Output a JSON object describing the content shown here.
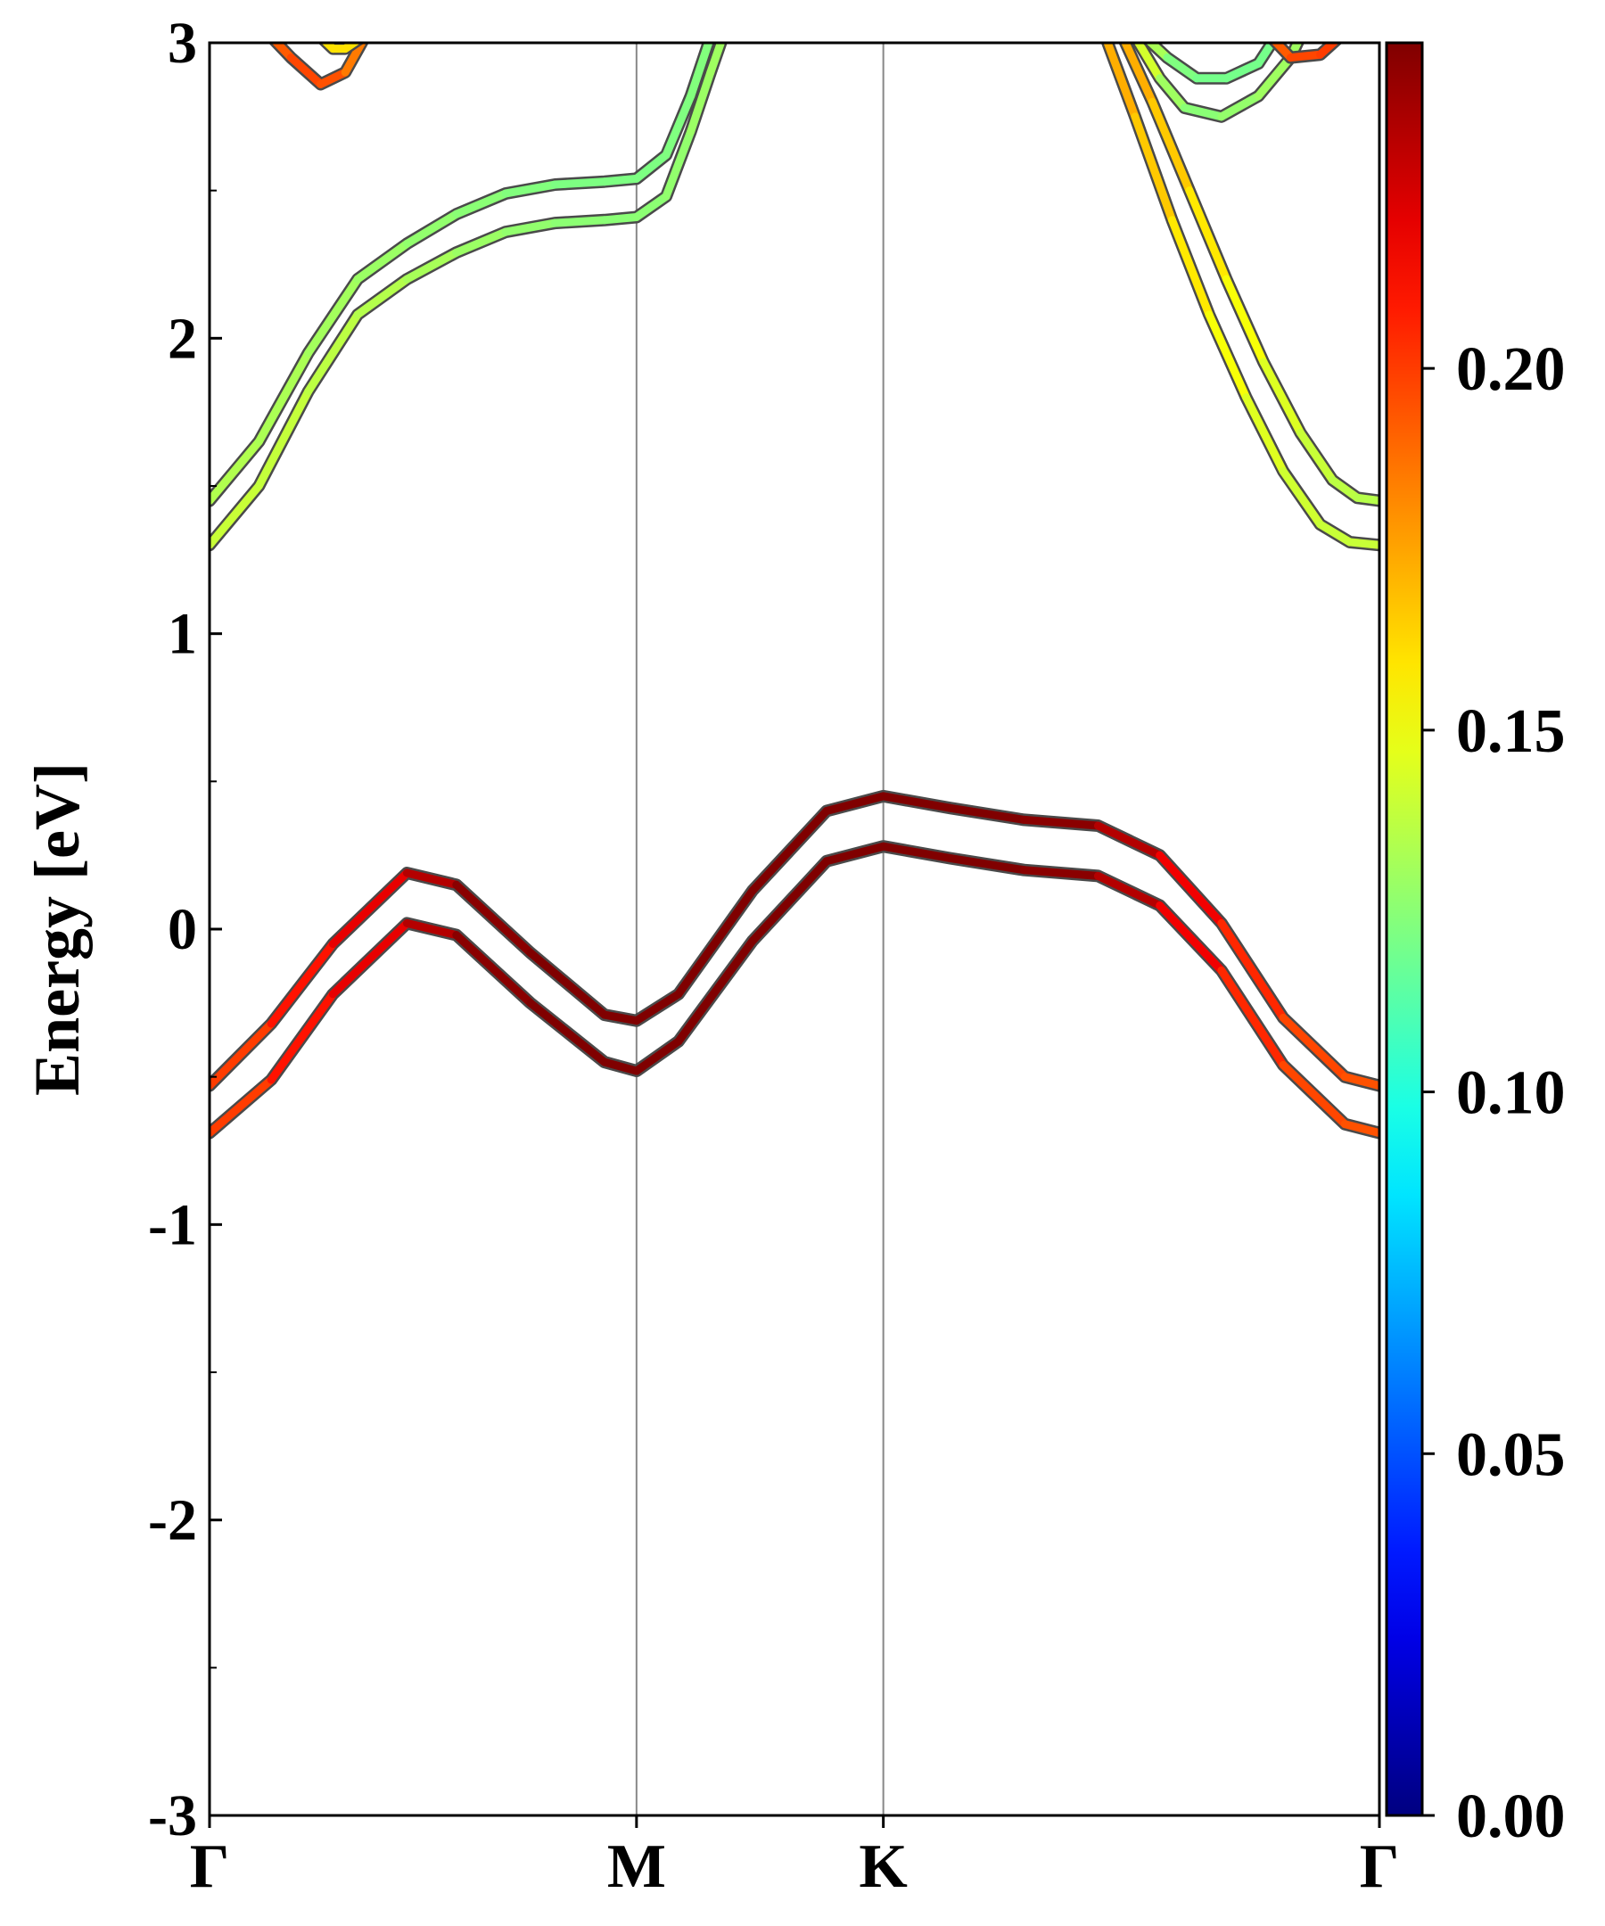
{
  "chart_data": {
    "type": "line",
    "title": "",
    "xlabel": "",
    "ylabel": "Energy [eV]",
    "ylim": [
      -3,
      3
    ],
    "yticks": [
      -3,
      -2,
      -1,
      0,
      1,
      2,
      3
    ],
    "ytick_labels": [
      "-3",
      "-2",
      "-1",
      "0",
      "1",
      "2",
      "3"
    ],
    "x_range": [
      0,
      4.74
    ],
    "high_symmetry_points": [
      {
        "label": "Γ",
        "k": 0
      },
      {
        "label": "M",
        "k": 1.73
      },
      {
        "label": "K",
        "k": 2.73
      },
      {
        "label": "Γ",
        "k": 4.74
      }
    ],
    "grid": false,
    "colorbar": {
      "colormap": "jet",
      "range": [
        0,
        0.245
      ],
      "ticks": [
        0.0,
        0.05,
        0.1,
        0.15,
        0.2
      ],
      "tick_labels": [
        "0.00",
        "0.05",
        "0.10",
        "0.15",
        "0.20"
      ]
    },
    "series": [
      {
        "band": "valence-upper",
        "points": [
          [
            0.0,
            -0.53,
            0.195
          ],
          [
            0.25,
            -0.32,
            0.205
          ],
          [
            0.5,
            -0.05,
            0.215
          ],
          [
            0.8,
            0.19,
            0.225
          ],
          [
            1.0,
            0.15,
            0.24
          ],
          [
            1.3,
            -0.08,
            0.245
          ],
          [
            1.6,
            -0.29,
            0.245
          ],
          [
            1.73,
            -0.31,
            0.245
          ],
          [
            1.9,
            -0.22,
            0.245
          ],
          [
            2.2,
            0.13,
            0.245
          ],
          [
            2.5,
            0.4,
            0.245
          ],
          [
            2.73,
            0.45,
            0.245
          ],
          [
            3.0,
            0.41,
            0.245
          ],
          [
            3.3,
            0.37,
            0.245
          ],
          [
            3.6,
            0.35,
            0.24
          ],
          [
            3.85,
            0.25,
            0.225
          ],
          [
            4.1,
            0.02,
            0.21
          ],
          [
            4.35,
            -0.3,
            0.2
          ],
          [
            4.6,
            -0.5,
            0.195
          ],
          [
            4.74,
            -0.53,
            0.195
          ]
        ]
      },
      {
        "band": "valence-lower",
        "points": [
          [
            0.0,
            -0.69,
            0.195
          ],
          [
            0.25,
            -0.51,
            0.205
          ],
          [
            0.5,
            -0.22,
            0.215
          ],
          [
            0.8,
            0.02,
            0.225
          ],
          [
            1.0,
            -0.02,
            0.24
          ],
          [
            1.3,
            -0.25,
            0.245
          ],
          [
            1.6,
            -0.45,
            0.245
          ],
          [
            1.73,
            -0.48,
            0.245
          ],
          [
            1.9,
            -0.38,
            0.245
          ],
          [
            2.2,
            -0.04,
            0.245
          ],
          [
            2.5,
            0.23,
            0.245
          ],
          [
            2.73,
            0.28,
            0.245
          ],
          [
            3.0,
            0.24,
            0.245
          ],
          [
            3.3,
            0.2,
            0.245
          ],
          [
            3.6,
            0.18,
            0.24
          ],
          [
            3.85,
            0.08,
            0.225
          ],
          [
            4.1,
            -0.14,
            0.21
          ],
          [
            4.35,
            -0.46,
            0.2
          ],
          [
            4.6,
            -0.66,
            0.195
          ],
          [
            4.74,
            -0.69,
            0.195
          ]
        ]
      },
      {
        "band": "conduction-lower",
        "points": [
          [
            0.0,
            1.3,
            0.14
          ],
          [
            0.2,
            1.5,
            0.14
          ],
          [
            0.4,
            1.82,
            0.138
          ],
          [
            0.6,
            2.08,
            0.136
          ],
          [
            0.8,
            2.2,
            0.134
          ],
          [
            1.0,
            2.29,
            0.13
          ],
          [
            1.2,
            2.36,
            0.128
          ],
          [
            1.4,
            2.39,
            0.126
          ],
          [
            1.6,
            2.4,
            0.125
          ],
          [
            1.73,
            2.41,
            0.125
          ],
          [
            1.85,
            2.48,
            0.126
          ],
          [
            1.95,
            2.7,
            0.128
          ],
          [
            2.03,
            2.9,
            0.13
          ],
          [
            2.08,
            3.02,
            0.13
          ]
        ]
      },
      {
        "band": "conduction-upper",
        "points": [
          [
            0.0,
            1.45,
            0.135
          ],
          [
            0.2,
            1.65,
            0.134
          ],
          [
            0.4,
            1.95,
            0.132
          ],
          [
            0.6,
            2.2,
            0.13
          ],
          [
            0.8,
            2.32,
            0.128
          ],
          [
            1.0,
            2.42,
            0.126
          ],
          [
            1.2,
            2.49,
            0.124
          ],
          [
            1.4,
            2.52,
            0.122
          ],
          [
            1.6,
            2.53,
            0.122
          ],
          [
            1.73,
            2.54,
            0.122
          ],
          [
            1.85,
            2.62,
            0.122
          ],
          [
            1.95,
            2.82,
            0.123
          ],
          [
            2.03,
            3.02,
            0.123
          ]
        ]
      },
      {
        "band": "conduction-right-lower",
        "points": [
          [
            3.63,
            3.02,
            0.175
          ],
          [
            3.75,
            2.75,
            0.17
          ],
          [
            3.9,
            2.4,
            0.162
          ],
          [
            4.05,
            2.08,
            0.155
          ],
          [
            4.2,
            1.8,
            0.148
          ],
          [
            4.35,
            1.55,
            0.143
          ],
          [
            4.5,
            1.37,
            0.14
          ],
          [
            4.62,
            1.31,
            0.14
          ],
          [
            4.74,
            1.3,
            0.14
          ]
        ]
      },
      {
        "band": "conduction-right-upper",
        "points": [
          [
            3.7,
            3.02,
            0.175
          ],
          [
            3.82,
            2.8,
            0.17
          ],
          [
            3.97,
            2.5,
            0.162
          ],
          [
            4.12,
            2.2,
            0.155
          ],
          [
            4.27,
            1.92,
            0.148
          ],
          [
            4.42,
            1.68,
            0.142
          ],
          [
            4.55,
            1.52,
            0.138
          ],
          [
            4.65,
            1.46,
            0.136
          ],
          [
            4.74,
            1.45,
            0.135
          ]
        ]
      },
      {
        "band": "upper-right-pocket-a",
        "points": [
          [
            3.75,
            3.02,
            0.15
          ],
          [
            3.85,
            2.88,
            0.135
          ],
          [
            3.95,
            2.78,
            0.125
          ],
          [
            4.1,
            2.75,
            0.125
          ],
          [
            4.25,
            2.82,
            0.13
          ],
          [
            4.38,
            2.95,
            0.13
          ],
          [
            4.42,
            3.02,
            0.13
          ]
        ]
      },
      {
        "band": "upper-right-pocket-b",
        "points": [
          [
            3.79,
            3.02,
            0.14
          ],
          [
            3.88,
            2.95,
            0.125
          ],
          [
            4.0,
            2.88,
            0.12
          ],
          [
            4.12,
            2.88,
            0.12
          ],
          [
            4.25,
            2.93,
            0.12
          ],
          [
            4.32,
            3.02,
            0.12
          ]
        ]
      },
      {
        "band": "upper-right-pocket-c",
        "points": [
          [
            4.3,
            3.02,
            0.19
          ],
          [
            4.38,
            2.95,
            0.195
          ],
          [
            4.5,
            2.96,
            0.2
          ],
          [
            4.58,
            3.02,
            0.2
          ]
        ]
      },
      {
        "band": "upper-left-pocket-a",
        "points": [
          [
            0.25,
            3.02,
            0.19
          ],
          [
            0.33,
            2.95,
            0.195
          ],
          [
            0.45,
            2.86,
            0.2
          ],
          [
            0.55,
            2.9,
            0.19
          ],
          [
            0.63,
            3.02,
            0.18
          ]
        ]
      },
      {
        "band": "upper-left-pocket-b",
        "points": [
          [
            0.45,
            3.02,
            0.16
          ],
          [
            0.5,
            2.98,
            0.16
          ],
          [
            0.55,
            2.98,
            0.16
          ],
          [
            0.62,
            3.02,
            0.16
          ]
        ]
      }
    ]
  }
}
